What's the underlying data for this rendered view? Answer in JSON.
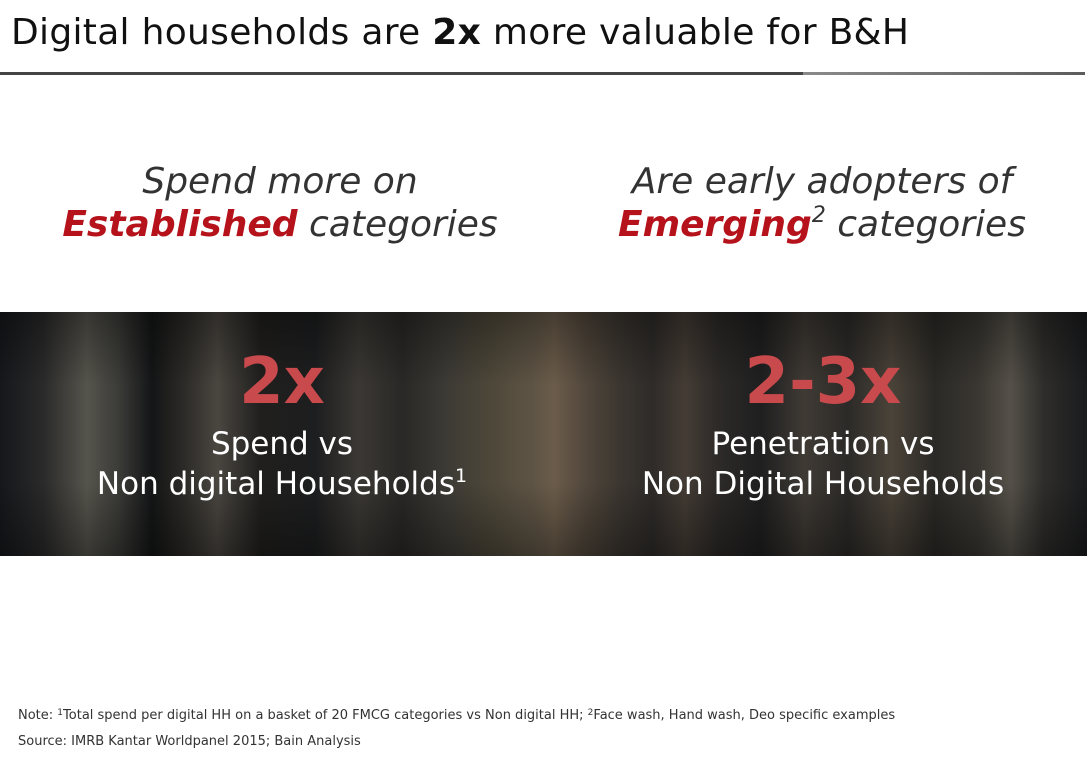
{
  "title": {
    "before": "Digital households are ",
    "highlight": "2x",
    "after": " more valuable for B&H"
  },
  "columns": [
    {
      "heading_line1": "Spend more on",
      "heading_emphasis": "Established",
      "heading_sup": "",
      "heading_rest": " categories",
      "stat_value": "2x",
      "stat_line1": "Spend vs",
      "stat_line2": "Non digital Households",
      "stat_sup": "1"
    },
    {
      "heading_line1": "Are early adopters of",
      "heading_emphasis": "Emerging",
      "heading_sup": "2",
      "heading_rest": " categories",
      "stat_value": "2-3x",
      "stat_line1": "Penetration vs",
      "stat_line2": "Non Digital Households",
      "stat_sup": ""
    }
  ],
  "footnotes": {
    "note_label": "Note: ",
    "note_sup1": "1",
    "note_text1": "Total spend per digital HH on a basket of 20 FMCG categories vs Non digital HH; ",
    "note_sup2": "2",
    "note_text2": "Face wash, Hand wash, Deo specific examples",
    "source": "Source: IMRB Kantar Worldpanel 2015; Bain Analysis"
  },
  "colors": {
    "emphasis_red": "#b5121b",
    "stat_red": "#c94a4d",
    "title_rule": "#444444"
  }
}
